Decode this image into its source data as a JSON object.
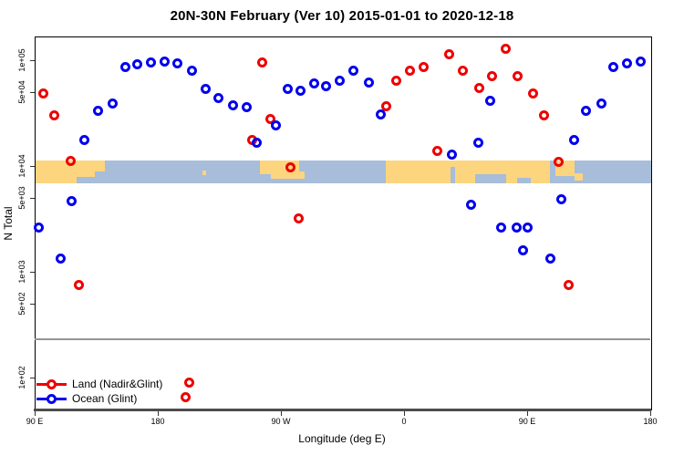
{
  "title": "20N-30N February (Ver 10)   2015-01-01 to 2020-12-18",
  "axes": {
    "xlabel": "Longitude (deg E)",
    "ylabel": "N Total",
    "x_ticks": [
      {
        "deg": 0,
        "label": "90 E"
      },
      {
        "deg": 90,
        "label": "180"
      },
      {
        "deg": 180,
        "label": "90 W"
      },
      {
        "deg": 270,
        "label": "0"
      },
      {
        "deg": 360,
        "label": "90 E"
      },
      {
        "deg": 450,
        "label": "180"
      }
    ],
    "y_ticks": [
      {
        "value": 100000,
        "label": "1e+05"
      },
      {
        "value": 50000,
        "label": "5e+04"
      },
      {
        "value": 10000,
        "label": "1e+04"
      },
      {
        "value": 5000,
        "label": "5e+03"
      },
      {
        "value": 1000,
        "label": "1e+03"
      },
      {
        "value": 500,
        "label": "5e+02"
      },
      {
        "value": 100,
        "label": "1e+02"
      }
    ]
  },
  "legend": [
    {
      "name": "Land (Nadir&Glint)",
      "color": "#ee0000"
    },
    {
      "name": "Ocean (Glint)",
      "color": "#0000ee"
    }
  ],
  "chart_data": {
    "type": "scatter",
    "title": "20N-30N February (Ver 10)   2015-01-01 to 2020-12-18",
    "xlabel": "Longitude (deg E)",
    "ylabel": "N Total",
    "x_axis_note": "longitude axis spans 450 deg eastward from 90E (90E,180,90W,0,90E,180); deg = degrees east of left edge",
    "y_scale": "log",
    "ylim": [
      50,
      168000
    ],
    "threshold_line": {
      "n": 230,
      "color": "#949494"
    },
    "series": [
      {
        "name": "Land (Nadir&Glint)",
        "color": "#ee0000",
        "points": [
          {
            "deg": 6.0,
            "n": 48000
          },
          {
            "deg": 14.0,
            "n": 30000
          },
          {
            "deg": 26.0,
            "n": 11100
          },
          {
            "deg": 32.0,
            "n": 750
          },
          {
            "deg": 110.0,
            "n": 65
          },
          {
            "deg": 112.7,
            "n": 90
          },
          {
            "deg": 158.7,
            "n": 17600
          },
          {
            "deg": 166.0,
            "n": 96000
          },
          {
            "deg": 172.0,
            "n": 28000
          },
          {
            "deg": 186.7,
            "n": 9700
          },
          {
            "deg": 192.7,
            "n": 3200
          },
          {
            "deg": 256.7,
            "n": 37000
          },
          {
            "deg": 264.0,
            "n": 64000
          },
          {
            "deg": 274.0,
            "n": 79000
          },
          {
            "deg": 284.0,
            "n": 87000
          },
          {
            "deg": 294.0,
            "n": 13800
          },
          {
            "deg": 302.7,
            "n": 113000
          },
          {
            "deg": 313.3,
            "n": 79000
          },
          {
            "deg": 324.7,
            "n": 55000
          },
          {
            "deg": 334.0,
            "n": 70000
          },
          {
            "deg": 344.0,
            "n": 127000
          },
          {
            "deg": 353.3,
            "n": 70000
          },
          {
            "deg": 364.0,
            "n": 48000
          },
          {
            "deg": 372.0,
            "n": 30000
          },
          {
            "deg": 383.3,
            "n": 10900
          },
          {
            "deg": 390.0,
            "n": 750
          }
        ]
      },
      {
        "name": "Ocean (Glint)",
        "color": "#0000ee",
        "points": [
          {
            "deg": 2.7,
            "n": 2600
          },
          {
            "deg": 19.3,
            "n": 1340
          },
          {
            "deg": 26.7,
            "n": 4700
          },
          {
            "deg": 36.0,
            "n": 17600
          },
          {
            "deg": 46.0,
            "n": 33000
          },
          {
            "deg": 56.7,
            "n": 39000
          },
          {
            "deg": 66.0,
            "n": 87000
          },
          {
            "deg": 74.7,
            "n": 92000
          },
          {
            "deg": 84.7,
            "n": 96000
          },
          {
            "deg": 94.7,
            "n": 98000
          },
          {
            "deg": 104.0,
            "n": 94000
          },
          {
            "deg": 114.7,
            "n": 79000
          },
          {
            "deg": 124.7,
            "n": 53000
          },
          {
            "deg": 134.0,
            "n": 44000
          },
          {
            "deg": 145.3,
            "n": 37500
          },
          {
            "deg": 154.7,
            "n": 36000
          },
          {
            "deg": 162.0,
            "n": 16600
          },
          {
            "deg": 176.0,
            "n": 24000
          },
          {
            "deg": 184.7,
            "n": 54000
          },
          {
            "deg": 194.0,
            "n": 51000
          },
          {
            "deg": 204.0,
            "n": 60000
          },
          {
            "deg": 213.3,
            "n": 57000
          },
          {
            "deg": 222.7,
            "n": 64000
          },
          {
            "deg": 233.3,
            "n": 79000
          },
          {
            "deg": 244.0,
            "n": 61000
          },
          {
            "deg": 252.7,
            "n": 31000
          },
          {
            "deg": 304.7,
            "n": 12800
          },
          {
            "deg": 318.7,
            "n": 4300
          },
          {
            "deg": 324.0,
            "n": 16600
          },
          {
            "deg": 333.3,
            "n": 41000
          },
          {
            "deg": 340.7,
            "n": 2600
          },
          {
            "deg": 352.0,
            "n": 2600
          },
          {
            "deg": 357.3,
            "n": 1600
          },
          {
            "deg": 360.0,
            "n": 2600
          },
          {
            "deg": 376.7,
            "n": 1340
          },
          {
            "deg": 385.3,
            "n": 4800
          },
          {
            "deg": 394.0,
            "n": 17600
          },
          {
            "deg": 403.3,
            "n": 33000
          },
          {
            "deg": 414.0,
            "n": 39000
          },
          {
            "deg": 423.3,
            "n": 86000
          },
          {
            "deg": 432.7,
            "n": 94000
          },
          {
            "deg": 443.3,
            "n": 98000
          }
        ]
      }
    ],
    "map_band": {
      "description": "world coastline strip for 20N-30N drawn across the plot",
      "ocean_color": "#a7bdd9",
      "land_color": "#fcd57e",
      "n_top": 11600,
      "n_bottom": 7000,
      "land_segments": [
        {
          "deg0": 0,
          "deg1": 30,
          "f0": 0,
          "f1": 1
        },
        {
          "deg0": 30,
          "deg1": 43,
          "f0": 0,
          "f1": 0.72
        },
        {
          "deg0": 43,
          "deg1": 51,
          "f0": 0,
          "f1": 0.5
        },
        {
          "deg0": 122,
          "deg1": 125,
          "f0": 0.45,
          "f1": 0.65
        },
        {
          "deg0": 164,
          "deg1": 193,
          "f0": 0,
          "f1": 0.62
        },
        {
          "deg0": 172,
          "deg1": 197,
          "f0": 0.5,
          "f1": 0.8
        },
        {
          "deg0": 256,
          "deg1": 376,
          "f0": 0,
          "f1": 1
        },
        {
          "deg0": 380,
          "deg1": 394,
          "f0": 0,
          "f1": 0.7
        },
        {
          "deg0": 394,
          "deg1": 400,
          "f0": 0.55,
          "f1": 0.9
        }
      ],
      "ocean_notches": [
        {
          "deg0": 303,
          "deg1": 306.5,
          "f0": 0.3,
          "f1": 1
        },
        {
          "deg0": 321,
          "deg1": 344,
          "f0": 0.62,
          "f1": 1
        },
        {
          "deg0": 352,
          "deg1": 362,
          "f0": 0.75,
          "f1": 1
        }
      ]
    }
  }
}
